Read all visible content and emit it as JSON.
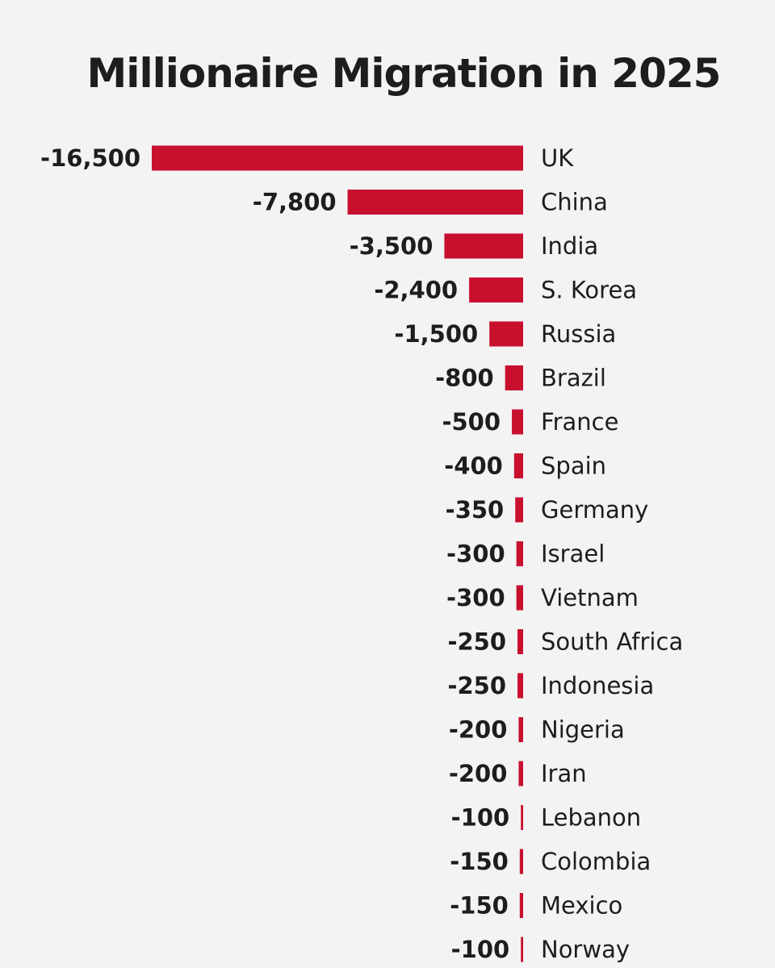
{
  "chart_data": {
    "type": "bar",
    "orientation": "horizontal",
    "title": "Millionaire Migration in 2025",
    "bar_color": "#c8102e",
    "categories": [
      "UK",
      "China",
      "India",
      "S. Korea",
      "Russia",
      "Brazil",
      "France",
      "Spain",
      "Germany",
      "Israel",
      "Vietnam",
      "South Africa",
      "Indonesia",
      "Nigeria",
      "Iran",
      "Lebanon",
      "Colombia",
      "Mexico",
      "Norway"
    ],
    "values": [
      -16500,
      -7800,
      -3500,
      -2400,
      -1500,
      -800,
      -500,
      -400,
      -350,
      -300,
      -300,
      -250,
      -250,
      -200,
      -200,
      -100,
      -150,
      -150,
      -100
    ],
    "value_labels": [
      "-16,500",
      "-7,800",
      "-3,500",
      "-2,400",
      "-1,500",
      "-800",
      "-500",
      "-400",
      "-350",
      "-300",
      "-300",
      "-250",
      "-250",
      "-200",
      "-200",
      "-100",
      "-150",
      "-150",
      "-100"
    ]
  }
}
